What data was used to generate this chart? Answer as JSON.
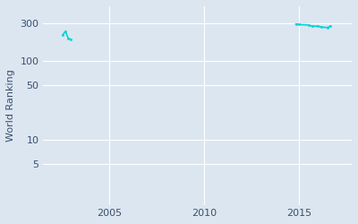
{
  "ylabel": "World Ranking",
  "bg_color": "#dce6f0",
  "line_color": "#00d4d4",
  "marker_color": "#00d4d4",
  "grid_color": "#ffffff",
  "yticks": [
    5,
    10,
    50,
    100,
    300
  ],
  "xticks": [
    2005,
    2010,
    2015
  ],
  "xlim": [
    2001.5,
    2017.8
  ],
  "ylim_log": [
    1.5,
    500
  ],
  "cluster1": [
    {
      "year": 2002.55,
      "rank": 215
    },
    {
      "year": 2002.7,
      "rank": 240
    },
    {
      "year": 2002.85,
      "rank": 195
    },
    {
      "year": 2003.0,
      "rank": 190
    }
  ],
  "cluster2": [
    {
      "year": 2014.85,
      "rank": 297
    },
    {
      "year": 2015.0,
      "rank": 294
    },
    {
      "year": 2015.55,
      "rank": 288
    },
    {
      "year": 2015.7,
      "rank": 278
    },
    {
      "year": 2016.0,
      "rank": 280
    },
    {
      "year": 2016.2,
      "rank": 272
    },
    {
      "year": 2016.5,
      "rank": 268
    },
    {
      "year": 2016.65,
      "rank": 278
    }
  ]
}
